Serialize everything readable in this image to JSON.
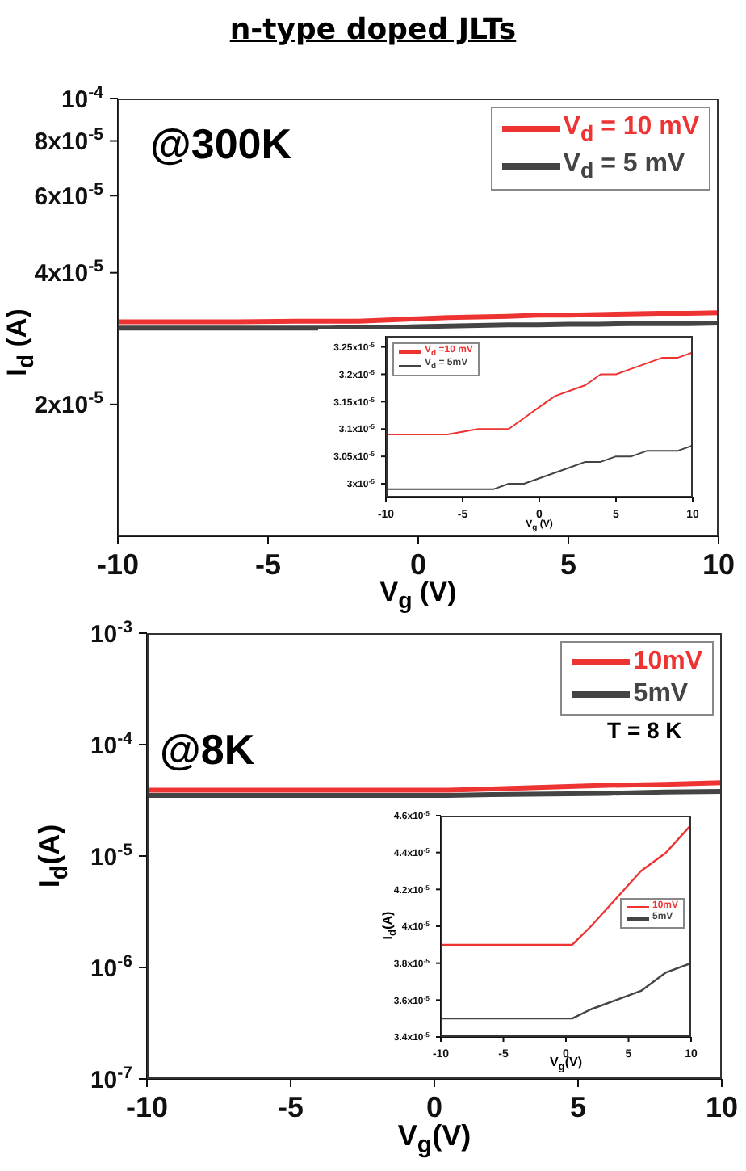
{
  "chart_data": [
    {
      "type": "line",
      "title": "n-type doped JLTs",
      "xlabel": "V$_{g}$ (V)",
      "ylabel": "I$_{d}$ (A)",
      "annotations": [
        "@300K"
      ],
      "x": [
        -10,
        -8,
        -6,
        -4,
        -3,
        -2,
        -1,
        0,
        1,
        2,
        3,
        4,
        5,
        6,
        7,
        8,
        9,
        10
      ],
      "series": [
        {
          "name": "V$_{d}$ = 10 mV",
          "color": "#ee3333",
          "values": [
            3.09e-05,
            3.09e-05,
            3.09e-05,
            3.1e-05,
            3.1e-05,
            3.1e-05,
            3.12e-05,
            3.14e-05,
            3.16e-05,
            3.17e-05,
            3.18e-05,
            3.2e-05,
            3.2e-05,
            3.21e-05,
            3.22e-05,
            3.23e-05,
            3.23e-05,
            3.24e-05
          ]
        },
        {
          "name": "V$_{d}$ = 5 mV",
          "color": "#444444",
          "values": [
            2.99e-05,
            2.99e-05,
            2.99e-05,
            2.99e-05,
            2.99e-05,
            3e-05,
            3e-05,
            3.01e-05,
            3.02e-05,
            3.03e-05,
            3.04e-05,
            3.04e-05,
            3.05e-05,
            3.05e-05,
            3.06e-05,
            3.06e-05,
            3.06e-05,
            3.07e-05
          ]
        }
      ],
      "xlim": [
        -10,
        10
      ],
      "xticks": [
        -10,
        -5,
        0,
        5,
        10
      ],
      "log": "y",
      "ylim": [
        1e-05,
        0.0001
      ],
      "yticks": [
        {
          "value": 2e-05,
          "label": "2x10$^{-5}$"
        },
        {
          "value": 4e-05,
          "label": "4x10$^{-5}$"
        },
        {
          "value": 6e-05,
          "label": "6x10$^{-5}$"
        },
        {
          "value": 8e-05,
          "label": "8x10$^{-5}$"
        },
        {
          "value": 0.0001,
          "label": "10$^{-4}$"
        }
      ],
      "legend": "top right"
    },
    {
      "type": "line",
      "xlabel": "V$_{g}$ (V)",
      "x": [
        -10,
        -8,
        -6,
        -4,
        -3,
        -2,
        -1,
        0,
        1,
        2,
        3,
        4,
        5,
        6,
        7,
        8,
        9,
        10
      ],
      "series": [
        {
          "name": "V$_{d}$ =10 mV",
          "color": "#ee3333",
          "values": [
            3.09e-05,
            3.09e-05,
            3.09e-05,
            3.1e-05,
            3.1e-05,
            3.1e-05,
            3.12e-05,
            3.14e-05,
            3.16e-05,
            3.17e-05,
            3.18e-05,
            3.2e-05,
            3.2e-05,
            3.21e-05,
            3.22e-05,
            3.23e-05,
            3.23e-05,
            3.24e-05
          ]
        },
        {
          "name": "V$_{d}$ = 5mV",
          "color": "#444444",
          "values": [
            2.99e-05,
            2.99e-05,
            2.99e-05,
            2.99e-05,
            2.99e-05,
            3e-05,
            3e-05,
            3.01e-05,
            3.02e-05,
            3.03e-05,
            3.04e-05,
            3.04e-05,
            3.05e-05,
            3.05e-05,
            3.06e-05,
            3.06e-05,
            3.06e-05,
            3.07e-05
          ]
        }
      ],
      "xlim": [
        -10,
        10
      ],
      "xticks": [
        -10,
        -5,
        0,
        5,
        10
      ],
      "ylim": [
        2.975e-05,
        3.27e-05
      ],
      "yticks": [
        {
          "value": 3e-05,
          "label": "3x10$^{-5}$"
        },
        {
          "value": 3.05e-05,
          "label": "3.05x10$^{-5}$"
        },
        {
          "value": 3.1e-05,
          "label": "3.1x10$^{-5}$"
        },
        {
          "value": 3.15e-05,
          "label": "3.15x10$^{-5}$"
        },
        {
          "value": 3.2e-05,
          "label": "3.2x10$^{-5}$"
        },
        {
          "value": 3.25e-05,
          "label": "3.25x10$^{-5}$"
        }
      ],
      "legend": "top left"
    },
    {
      "type": "line",
      "xlabel": "V$_{g}$(V)",
      "ylabel": "I$_{d}$(A)",
      "annotations": [
        "@8K",
        "T = 8 K"
      ],
      "x": [
        -10,
        -5,
        0,
        0.5,
        2,
        4,
        6,
        8,
        10
      ],
      "series": [
        {
          "name": "10mV",
          "color": "#ee3333",
          "values": [
            3.9e-05,
            3.9e-05,
            3.9e-05,
            3.9e-05,
            4e-05,
            4.15e-05,
            4.3e-05,
            4.4e-05,
            4.55e-05
          ]
        },
        {
          "name": "5mV",
          "color": "#444444",
          "values": [
            3.5e-05,
            3.5e-05,
            3.5e-05,
            3.5e-05,
            3.55e-05,
            3.6e-05,
            3.65e-05,
            3.75e-05,
            3.8e-05
          ]
        }
      ],
      "xlim": [
        -10,
        10
      ],
      "xticks": [
        -10,
        -5,
        0,
        5,
        10
      ],
      "log": "y",
      "ylim": [
        1e-07,
        0.001
      ],
      "yticks": [
        {
          "value": 1e-07,
          "label": "10$^{-7}$"
        },
        {
          "value": 1e-06,
          "label": "10$^{-6}$"
        },
        {
          "value": 1e-05,
          "label": "10$^{-5}$"
        },
        {
          "value": 0.0001,
          "label": "10$^{-4}$"
        },
        {
          "value": 0.001,
          "label": "10$^{-3}$"
        }
      ],
      "legend": "top right"
    },
    {
      "type": "line",
      "xlabel": "V$_{g}$(V)",
      "ylabel": "I$_{d}$(A)",
      "x": [
        -10,
        -5,
        0,
        0.5,
        2,
        4,
        6,
        8,
        10
      ],
      "series": [
        {
          "name": "10mV",
          "color": "#ee3333",
          "values": [
            3.9e-05,
            3.9e-05,
            3.9e-05,
            3.9e-05,
            4e-05,
            4.15e-05,
            4.3e-05,
            4.4e-05,
            4.55e-05
          ]
        },
        {
          "name": "5mV",
          "color": "#444444",
          "values": [
            3.5e-05,
            3.5e-05,
            3.5e-05,
            3.5e-05,
            3.55e-05,
            3.6e-05,
            3.65e-05,
            3.75e-05,
            3.8e-05
          ]
        }
      ],
      "xlim": [
        -10,
        10
      ],
      "xticks": [
        -10,
        -5,
        0,
        5,
        10
      ],
      "ylim": [
        3.4e-05,
        4.6e-05
      ],
      "yticks": [
        {
          "value": 3.4e-05,
          "label": "3.4x10$^{-5}$"
        },
        {
          "value": 3.6e-05,
          "label": "3.6x10$^{-5}$"
        },
        {
          "value": 3.8e-05,
          "label": "3.8x10$^{-5}$"
        },
        {
          "value": 4e-05,
          "label": "4x10$^{-5}$"
        },
        {
          "value": 4.2e-05,
          "label": "4.2x10$^{-5}$"
        },
        {
          "value": 4.4e-05,
          "label": "4.4x10$^{-5}$"
        },
        {
          "value": 4.6e-05,
          "label": "4.6x10$^{-5}$"
        }
      ],
      "legend": "right"
    }
  ]
}
